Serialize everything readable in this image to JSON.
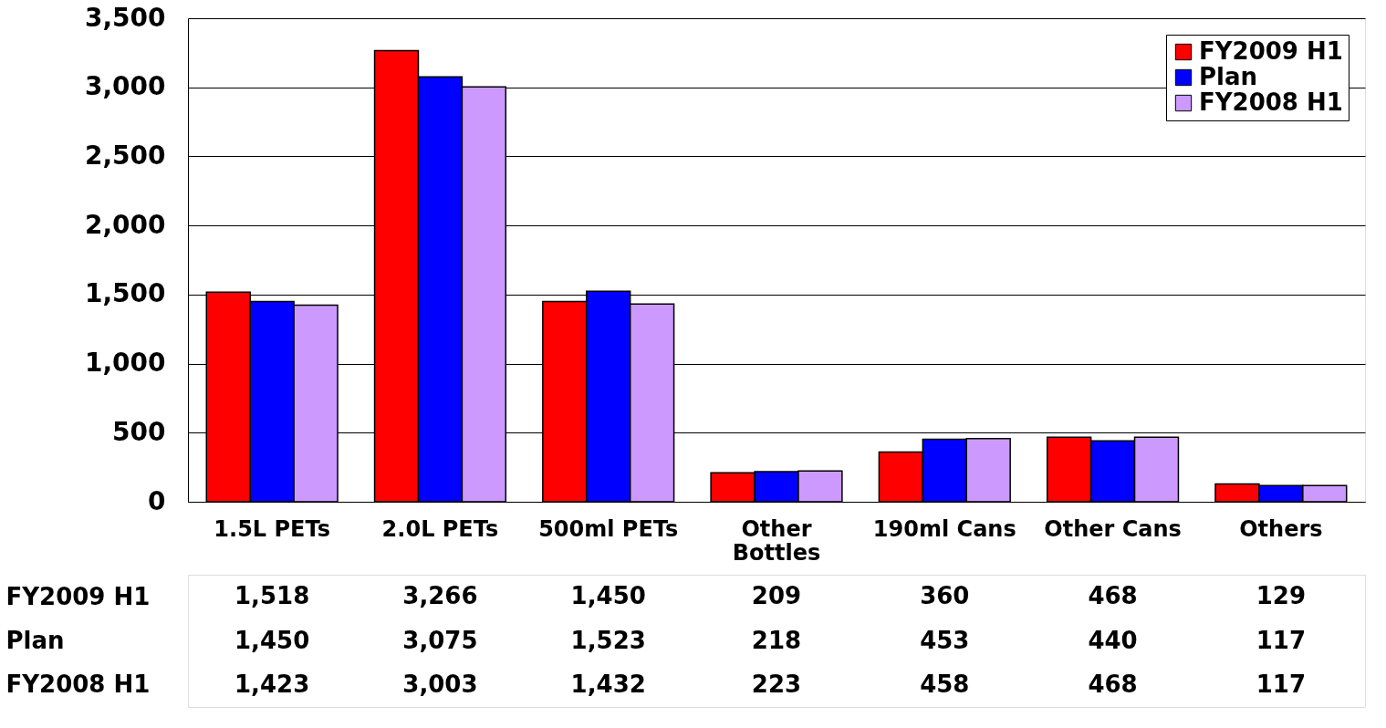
{
  "chart_data": {
    "type": "bar",
    "categories": [
      "1.5L PETs",
      "2.0L PETs",
      "500ml PETs",
      "Other Bottles",
      "190ml Cans",
      "Other Cans",
      "Others"
    ],
    "series": [
      {
        "name": "FY2009 H1",
        "color": "#ff0000",
        "values": [
          1518,
          3266,
          1450,
          209,
          360,
          468,
          129
        ],
        "value_labels": [
          "1,518",
          "3,266",
          "1,450",
          "209",
          "360",
          "468",
          "129"
        ]
      },
      {
        "name": "Plan",
        "color": "#0000ff",
        "values": [
          1450,
          3075,
          1523,
          218,
          453,
          440,
          117
        ],
        "value_labels": [
          "1,450",
          "3,075",
          "1,523",
          "218",
          "453",
          "440",
          "117"
        ]
      },
      {
        "name": "FY2008 H1",
        "color": "#cc99ff",
        "values": [
          1423,
          3003,
          1432,
          223,
          458,
          468,
          117
        ],
        "value_labels": [
          "1,423",
          "3,003",
          "1,432",
          "223",
          "458",
          "468",
          "117"
        ]
      }
    ],
    "ylim": [
      0,
      3500
    ],
    "yticks": [
      {
        "value": 0,
        "label": "0"
      },
      {
        "value": 500,
        "label": "500"
      },
      {
        "value": 1000,
        "label": "1,000"
      },
      {
        "value": 1500,
        "label": "1,500"
      },
      {
        "value": 2000,
        "label": "2,000"
      },
      {
        "value": 2500,
        "label": "2,500"
      },
      {
        "value": 3000,
        "label": "3,000"
      },
      {
        "value": 3500,
        "label": "3,500"
      }
    ],
    "grid": "y",
    "legend": "top right"
  }
}
